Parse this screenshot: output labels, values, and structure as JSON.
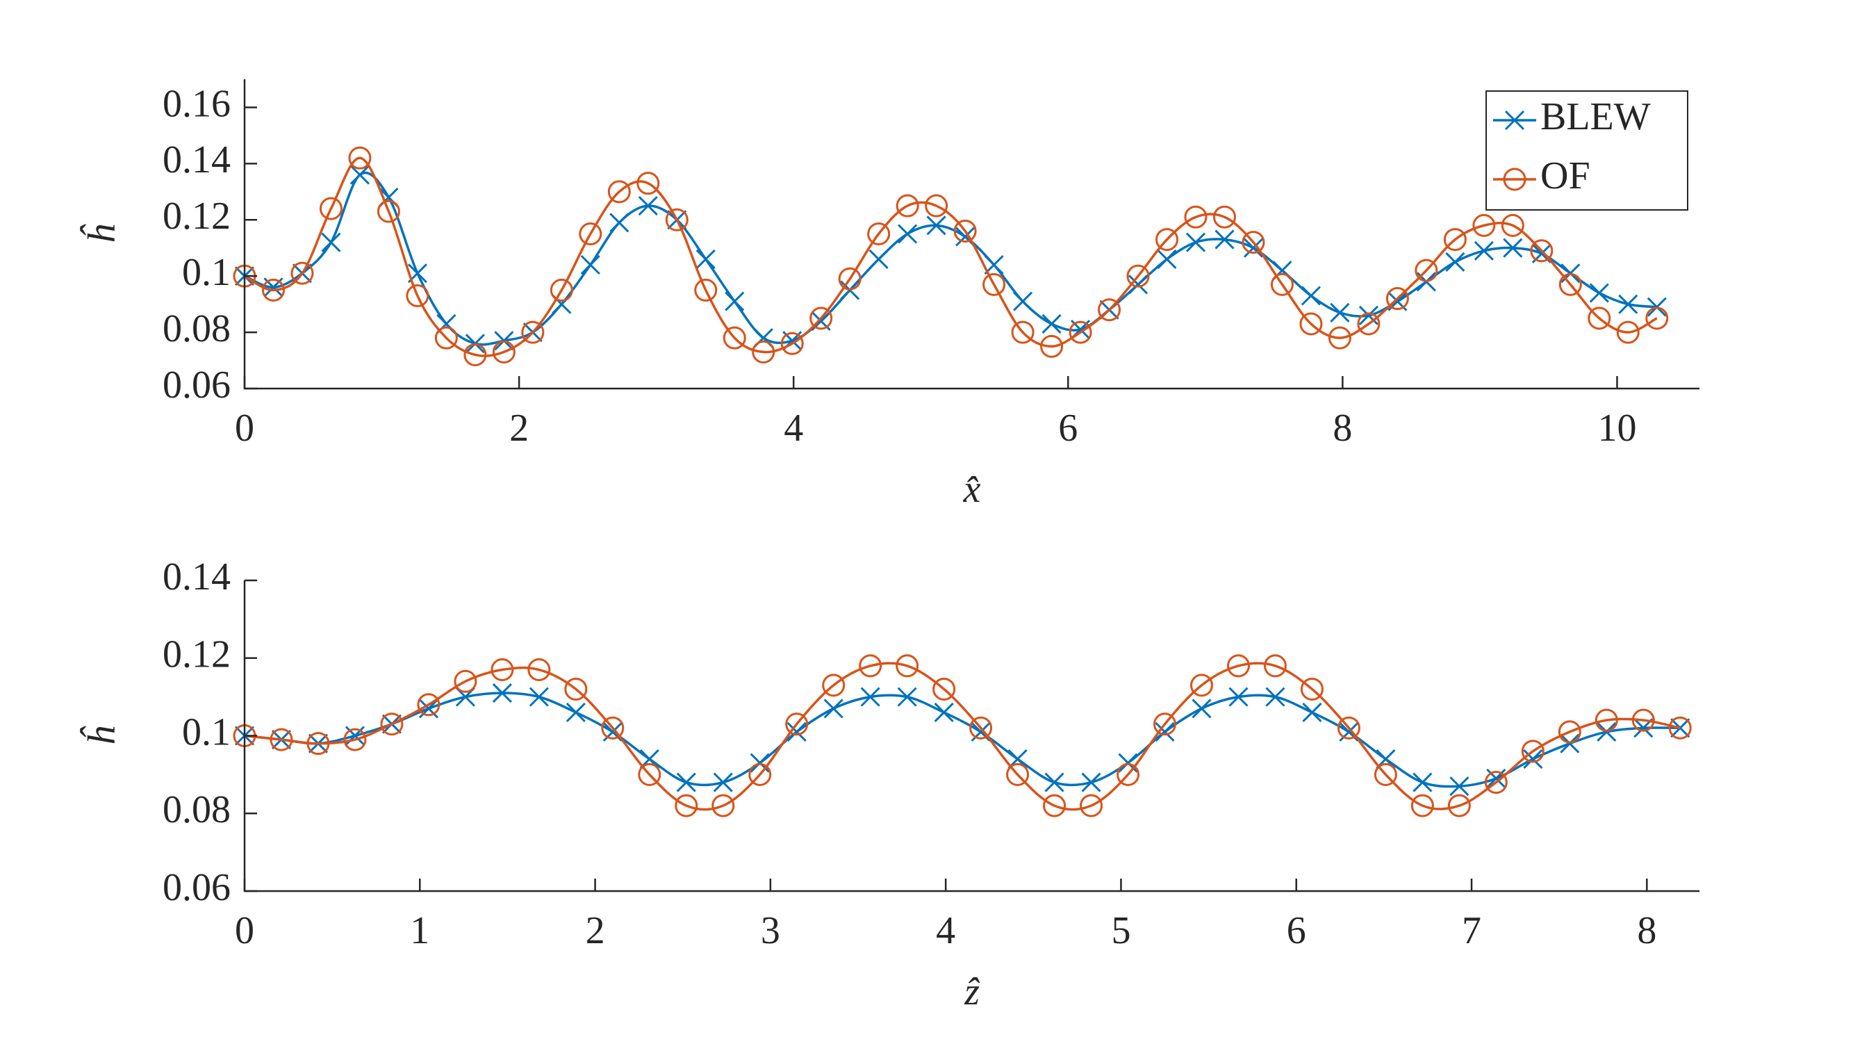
{
  "chart_data": [
    {
      "type": "line",
      "xlabel": "x̂",
      "ylabel": "ĥ",
      "xlim": [
        0,
        10.6
      ],
      "ylim": [
        0.06,
        0.17
      ],
      "xticks": [
        0,
        2,
        4,
        6,
        8,
        10
      ],
      "yticks": [
        0.06,
        0.08,
        0.1,
        0.12,
        0.14,
        0.16
      ],
      "legend": "northeast",
      "x": [
        0,
        0.21,
        0.42,
        0.63,
        0.84,
        1.05,
        1.26,
        1.47,
        1.68,
        1.89,
        2.1,
        2.31,
        2.52,
        2.73,
        2.94,
        3.15,
        3.36,
        3.57,
        3.78,
        3.99,
        4.2,
        4.41,
        4.62,
        4.83,
        5.04,
        5.25,
        5.46,
        5.67,
        5.88,
        6.09,
        6.3,
        6.51,
        6.72,
        6.93,
        7.14,
        7.35,
        7.56,
        7.77,
        7.98,
        8.19,
        8.4,
        8.61,
        8.82,
        9.03,
        9.24,
        9.45,
        9.66,
        9.87,
        10.08,
        10.29
      ],
      "series": [
        {
          "name": "BLEW",
          "color": "#0072bd",
          "marker": "x",
          "values": [
            0.1,
            0.096,
            0.101,
            0.112,
            0.136,
            0.128,
            0.101,
            0.083,
            0.076,
            0.077,
            0.08,
            0.09,
            0.104,
            0.119,
            0.125,
            0.12,
            0.106,
            0.091,
            0.078,
            0.077,
            0.084,
            0.095,
            0.106,
            0.115,
            0.118,
            0.114,
            0.104,
            0.091,
            0.083,
            0.081,
            0.088,
            0.097,
            0.106,
            0.112,
            0.113,
            0.11,
            0.102,
            0.093,
            0.087,
            0.086,
            0.091,
            0.098,
            0.105,
            0.109,
            0.11,
            0.108,
            0.101,
            0.094,
            0.09,
            0.089
          ]
        },
        {
          "name": "OF",
          "color": "#d95319",
          "marker": "o",
          "values": [
            0.1,
            0.095,
            0.101,
            0.124,
            0.142,
            0.123,
            0.093,
            0.078,
            0.072,
            0.073,
            0.08,
            0.095,
            0.115,
            0.13,
            0.133,
            0.12,
            0.095,
            0.078,
            0.073,
            0.076,
            0.085,
            0.099,
            0.115,
            0.125,
            0.125,
            0.116,
            0.097,
            0.08,
            0.075,
            0.08,
            0.088,
            0.1,
            0.113,
            0.121,
            0.121,
            0.112,
            0.097,
            0.083,
            0.078,
            0.083,
            0.092,
            0.102,
            0.113,
            0.118,
            0.118,
            0.109,
            0.097,
            0.085,
            0.08,
            0.085
          ]
        }
      ]
    },
    {
      "type": "line",
      "xlabel": "ẑ",
      "ylabel": "ĥ",
      "xlim": [
        0,
        8.3
      ],
      "ylim": [
        0.06,
        0.14
      ],
      "xticks": [
        0,
        1,
        2,
        3,
        4,
        5,
        6,
        7,
        8
      ],
      "yticks": [
        0.06,
        0.08,
        0.1,
        0.12,
        0.14
      ],
      "x": [
        0,
        0.21,
        0.42,
        0.63,
        0.84,
        1.05,
        1.26,
        1.47,
        1.68,
        1.89,
        2.1,
        2.31,
        2.52,
        2.73,
        2.94,
        3.15,
        3.36,
        3.57,
        3.78,
        3.99,
        4.2,
        4.41,
        4.62,
        4.83,
        5.04,
        5.25,
        5.46,
        5.67,
        5.88,
        6.09,
        6.3,
        6.51,
        6.72,
        6.93,
        7.14,
        7.35,
        7.56,
        7.77,
        7.98,
        8.19
      ],
      "series": [
        {
          "color": "#0072bd",
          "marker": "x",
          "values": [
            0.1,
            0.099,
            0.098,
            0.1,
            0.103,
            0.107,
            0.11,
            0.111,
            0.11,
            0.106,
            0.101,
            0.094,
            0.088,
            0.088,
            0.093,
            0.101,
            0.107,
            0.11,
            0.11,
            0.106,
            0.101,
            0.094,
            0.088,
            0.088,
            0.093,
            0.101,
            0.107,
            0.11,
            0.11,
            0.106,
            0.101,
            0.094,
            0.088,
            0.087,
            0.089,
            0.094,
            0.098,
            0.101,
            0.102,
            0.102
          ]
        },
        {
          "color": "#d95319",
          "marker": "o",
          "values": [
            0.1,
            0.099,
            0.098,
            0.099,
            0.103,
            0.108,
            0.114,
            0.117,
            0.117,
            0.112,
            0.102,
            0.09,
            0.082,
            0.082,
            0.09,
            0.103,
            0.113,
            0.118,
            0.118,
            0.112,
            0.102,
            0.09,
            0.082,
            0.082,
            0.09,
            0.103,
            0.113,
            0.118,
            0.118,
            0.112,
            0.102,
            0.09,
            0.082,
            0.082,
            0.088,
            0.096,
            0.101,
            0.104,
            0.104,
            0.102
          ]
        }
      ]
    }
  ]
}
